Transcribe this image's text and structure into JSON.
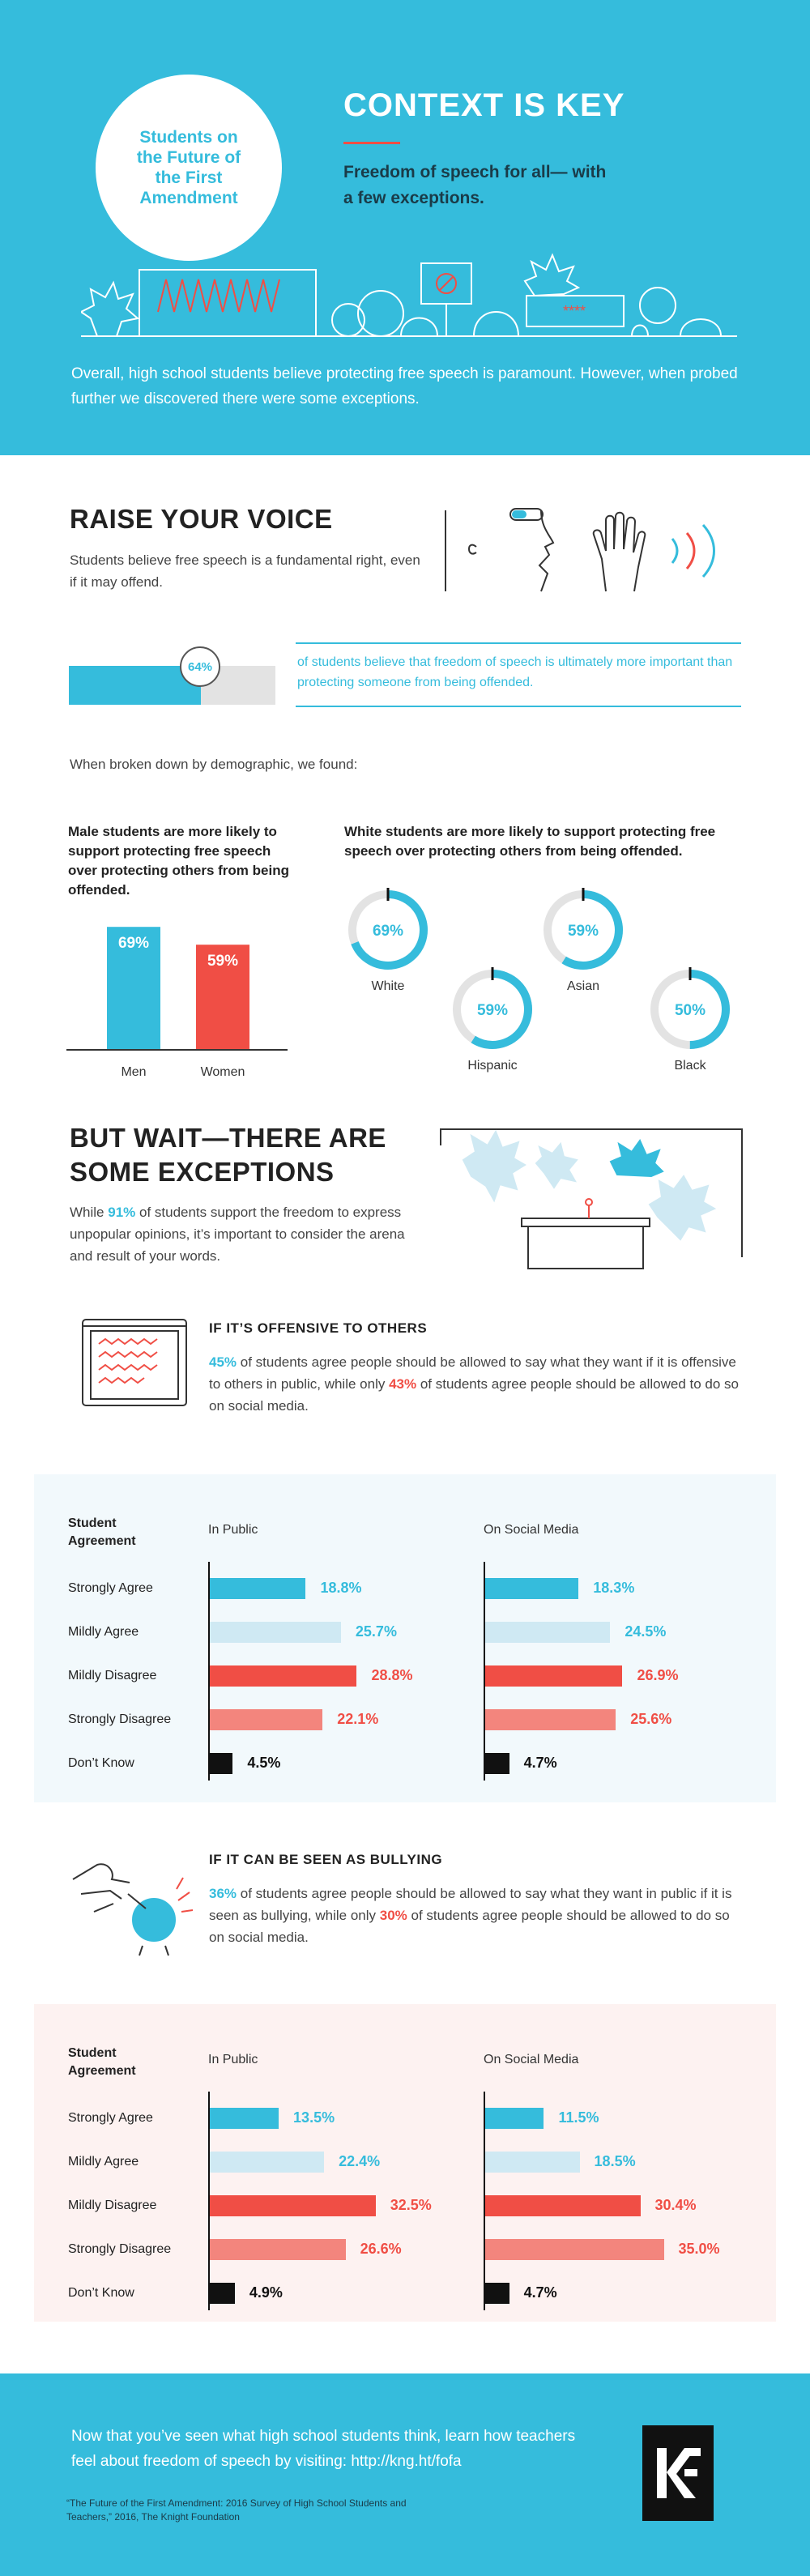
{
  "header": {
    "badge": "Students on the Future of the First Amendment",
    "title": "CONTEXT IS KEY",
    "subtitle": "Freedom of speech for all— with a few exceptions.",
    "intro": "Overall, high school students believe protecting free speech is paramount. However, when probed further we discovered there were some exceptions."
  },
  "raise": {
    "title": "RAISE YOUR VOICE",
    "body": "Students believe free speech is a fundamental right, even if it may offend.",
    "percent_label": "64%",
    "percent_value": 64,
    "percent_text": "of students believe that freedom of speech is ultimately more important than protecting someone from being offended.",
    "demo_intro": "When broken down by demographic, we found:"
  },
  "gender": {
    "heading": "Male students are more likely to support protecting free speech over protecting others from being offended."
  },
  "race": {
    "heading": "White students are more likely to support protecting free speech over protecting others from being offended."
  },
  "exceptions": {
    "title_line1": "BUT WAIT—THERE ARE",
    "title_line2": "SOME EXCEPTIONS",
    "body_pre": "While ",
    "body_pct": "91%",
    "body_post": " of students support the freedom to express unpopular opinions, it’s important to consider the arena and result of your words."
  },
  "offensive": {
    "heading": "IF IT’S OFFENSIVE TO OTHERS",
    "pct1": "45%",
    "text1": " of students agree people should be allowed to say what they want if it is offensive to others in public, while only ",
    "pct2": "43%",
    "text2": " of students agree people should be allowed to do so on social media."
  },
  "bullying": {
    "heading": "IF IT CAN BE SEEN AS BULLYING",
    "pct1": "36%",
    "text1": " of students agree people should be allowed to say what they want in public if it is seen as bullying, while only ",
    "pct2": "30%",
    "text2": " of students agree people should be allowed to do so on social media."
  },
  "footer": {
    "text": "Now that you’ve seen what high school students think, learn how teachers feel about freedom of speech by visiting: http://kng.ht/fofa",
    "citation": "“The Future of the First Amendment: 2016 Survey of High School Students and Teachers,” 2016, The Knight Foundation"
  },
  "colors": {
    "brand_blue": "#35bcdc",
    "red": "#f04e45",
    "light_blue": "#cfe9f3",
    "light_red": "#f3857d",
    "black": "#111111"
  },
  "chart_data": [
    {
      "type": "bar",
      "title": "Male students are more likely to support protecting free speech over protecting others from being offended.",
      "categories": [
        "Men",
        "Women"
      ],
      "values": [
        69,
        59
      ],
      "labels": [
        "69%",
        "59%"
      ],
      "colors": [
        "#35bcdc",
        "#f04e45"
      ],
      "ylim": [
        0,
        100
      ]
    },
    {
      "type": "pie",
      "title": "White students are more likely to support protecting free speech over protecting others from being offended.",
      "categories": [
        "White",
        "Hispanic",
        "Asian",
        "Black"
      ],
      "values": [
        69,
        59,
        59,
        50
      ],
      "labels": [
        "69%",
        "59%",
        "59%",
        "50%"
      ]
    },
    {
      "type": "bar",
      "title": "If it's offensive to others",
      "row_header": "Student Agreement",
      "categories": [
        "Strongly Agree",
        "Mildly Agree",
        "Mildly Disagree",
        "Strongly Disagree",
        "Don’t Know"
      ],
      "series": [
        {
          "name": "In Public",
          "values": [
            18.8,
            25.7,
            28.8,
            22.1,
            4.5
          ],
          "labels": [
            "18.8%",
            "25.7%",
            "28.8%",
            "22.1%",
            "4.5%"
          ]
        },
        {
          "name": "On Social Media",
          "values": [
            18.3,
            24.5,
            26.9,
            25.6,
            4.7
          ],
          "labels": [
            "18.3%",
            "24.5%",
            "26.9%",
            "25.6%",
            "4.7%"
          ]
        }
      ]
    },
    {
      "type": "bar",
      "title": "If it can be seen as bullying",
      "row_header": "Student Agreement",
      "categories": [
        "Strongly Agree",
        "Mildly Agree",
        "Mildly Disagree",
        "Strongly Disagree",
        "Don’t Know"
      ],
      "series": [
        {
          "name": "In Public",
          "values": [
            13.5,
            22.4,
            32.5,
            26.6,
            4.9
          ],
          "labels": [
            "13.5%",
            "22.4%",
            "32.5%",
            "26.6%",
            "4.9%"
          ]
        },
        {
          "name": "On Social Media",
          "values": [
            11.5,
            18.5,
            30.4,
            35.0,
            4.7
          ],
          "labels": [
            "11.5%",
            "18.5%",
            "30.4%",
            "35.0%",
            "4.7%"
          ]
        }
      ]
    }
  ]
}
